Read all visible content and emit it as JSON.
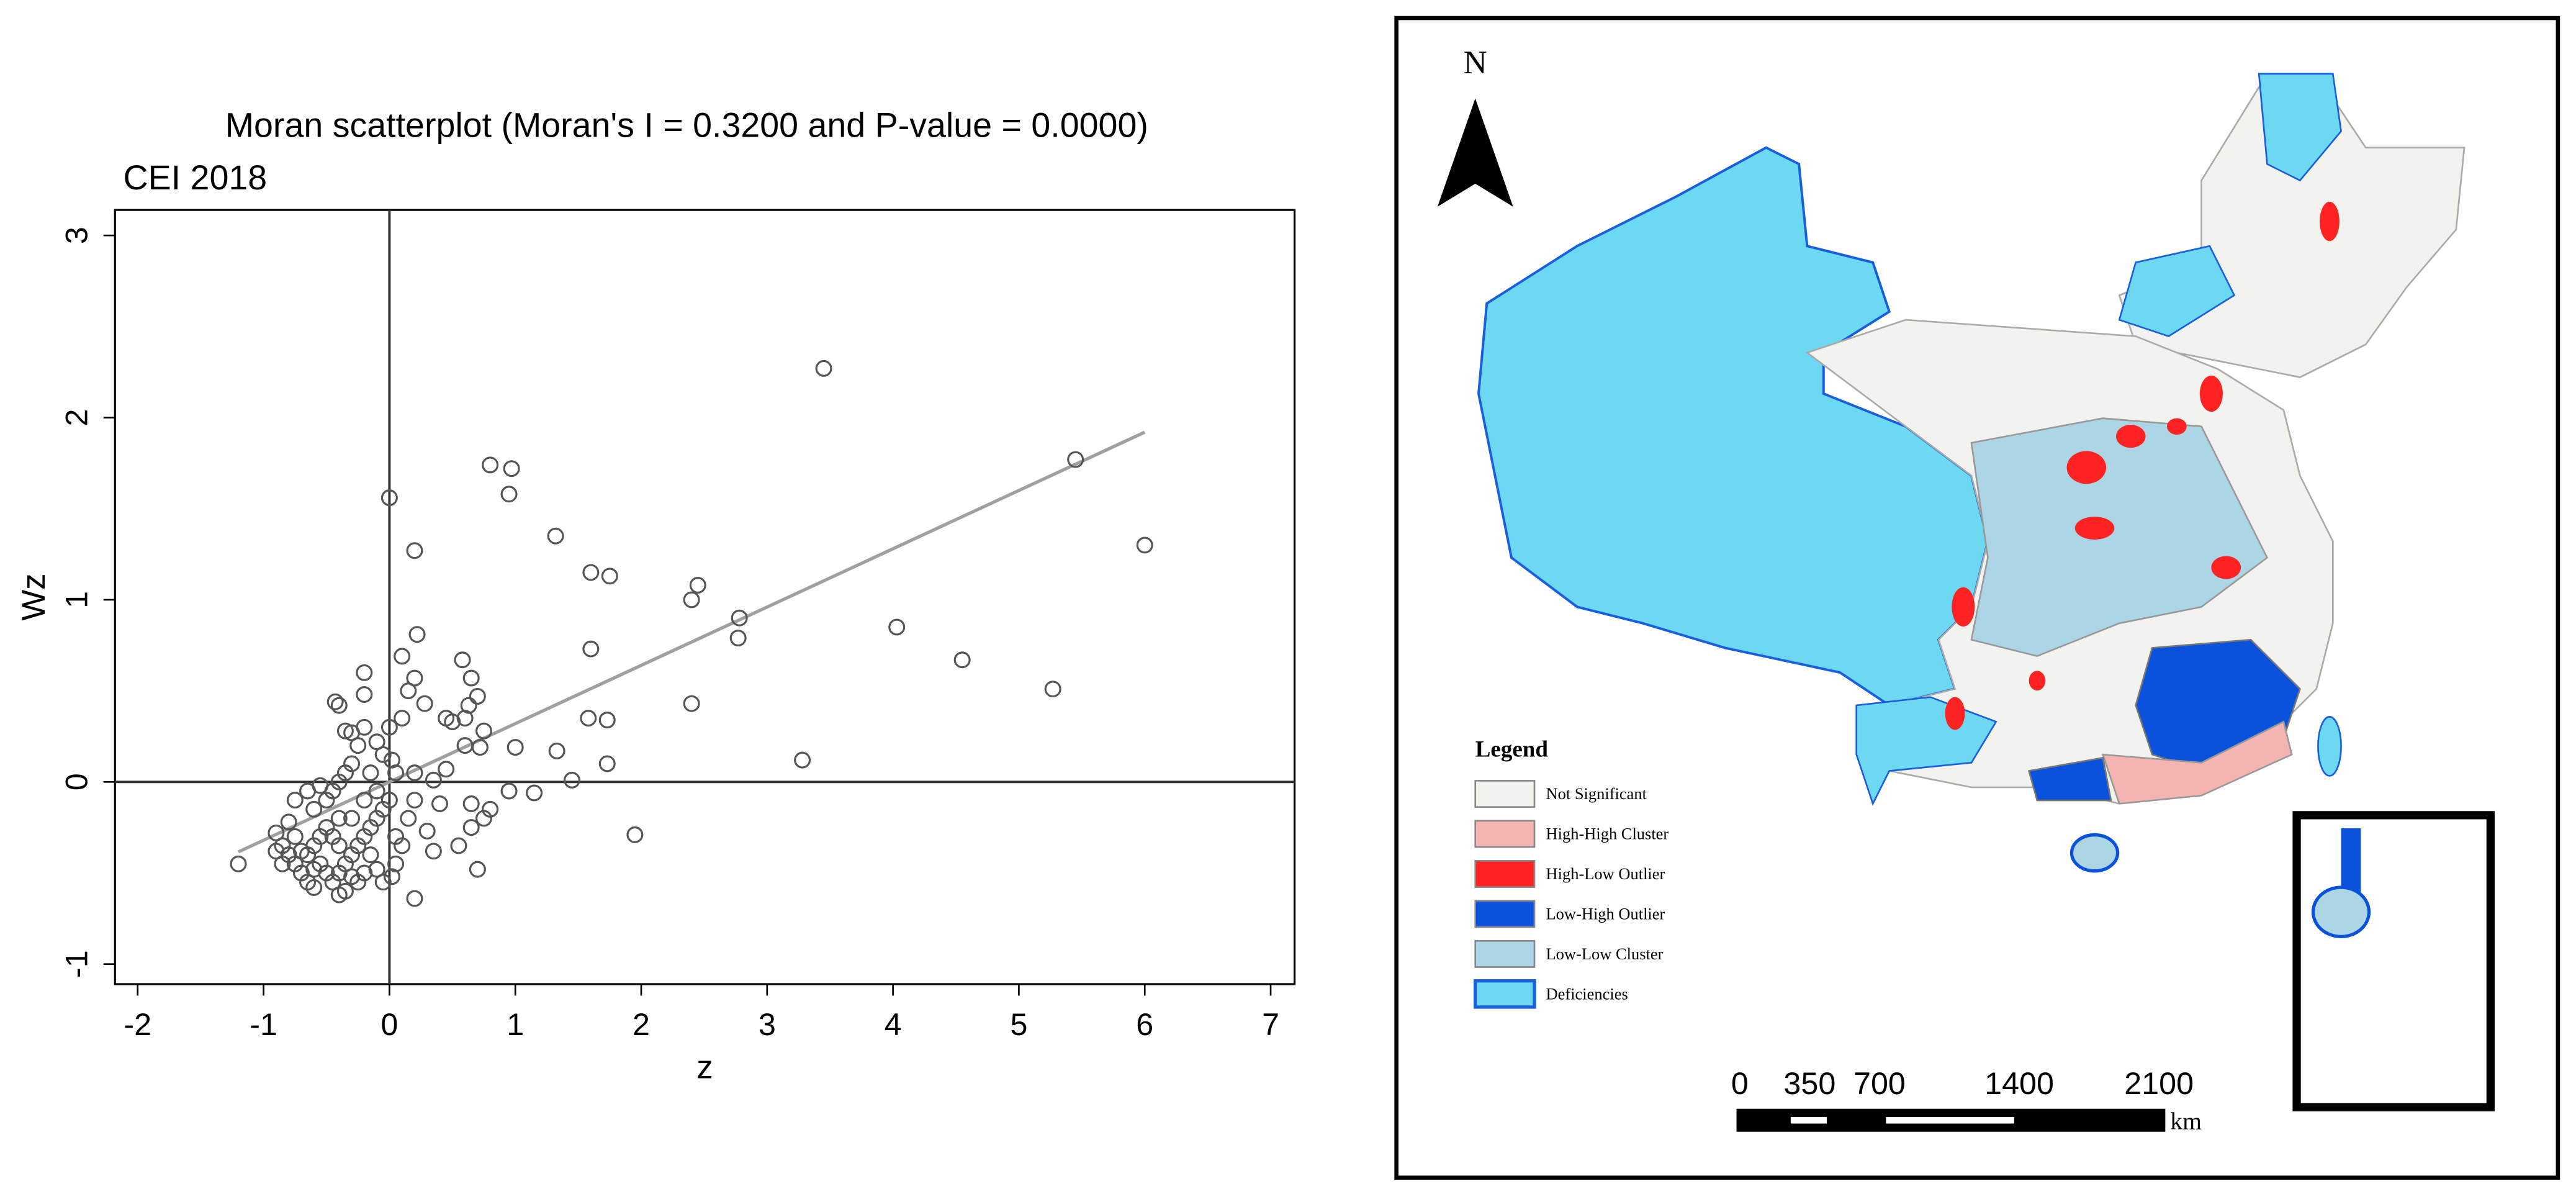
{
  "chart_data": {
    "type": "scatter",
    "title": "Moran scatterplot (Moran's I = 0.3200 and P-value = 0.0000)",
    "subtitle": "CEI 2018",
    "x_label": "z",
    "y_label": "Wz",
    "color": "#555555",
    "x": [
      3.45,
      5.45,
      6.0,
      0.8,
      0.97,
      0.95,
      0,
      0.2,
      1.32,
      1.6,
      1.75,
      2.4,
      2.45,
      2.78,
      2.77,
      4.03,
      4.55,
      5.27,
      1.6,
      2.4,
      3.28,
      1.95,
      1.73,
      1.58,
      1.33,
      1.45,
      1.73,
      1.0,
      1.15,
      0.95,
      0.8,
      0.7,
      0.2,
      -1.2,
      0.22,
      0.1,
      0.65,
      0.58,
      0.7,
      0.63,
      0.15,
      0.2,
      -0.2,
      -0.4,
      -0.43,
      -0.2,
      0.75,
      0.6,
      0.45,
      0.5,
      0.28,
      0.72,
      0.6,
      0.45,
      0.35,
      0.4,
      0.3,
      0.35,
      0.55,
      0.65,
      0.75,
      0.65,
      -0.9,
      -0.85,
      -0.8,
      -0.75,
      -0.7,
      -0.65,
      -0.6,
      -0.55,
      -0.5,
      -0.45,
      -0.4,
      -0.35,
      -0.3,
      -0.25,
      -0.2,
      -0.15,
      -0.1,
      -0.05,
      0,
      0.05,
      0.05,
      0.02,
      -0.05,
      -0.1,
      -0.15,
      -0.2,
      -0.25,
      -0.3,
      -0.35,
      -0.4,
      -0.45,
      -0.5,
      -0.55,
      -0.6,
      -0.65,
      -0.7,
      -0.75,
      -0.8,
      -0.6,
      -0.5,
      -0.45,
      -0.4,
      -0.35,
      -0.3,
      -0.25,
      -0.3,
      -0.2,
      -0.1,
      -0.05,
      0.02,
      0.05,
      -0.1,
      -0.2,
      -0.3,
      -0.4,
      -0.55,
      -0.65,
      -0.75,
      -0.85,
      -0.9,
      -0.6,
      -0.4,
      0.15,
      0.2,
      0.2,
      0.1,
      0.1,
      0,
      -0.35,
      -0.15
    ],
    "y": [
      2.27,
      1.77,
      1.3,
      1.74,
      1.72,
      1.58,
      1.56,
      1.27,
      1.35,
      1.15,
      1.13,
      1.0,
      1.08,
      0.9,
      0.79,
      0.85,
      0.67,
      0.51,
      0.73,
      0.43,
      0.12,
      -0.29,
      0.34,
      0.35,
      0.17,
      0.01,
      0.1,
      0.19,
      -0.06,
      -0.05,
      -0.15,
      -0.48,
      -0.64,
      -0.45,
      0.81,
      0.69,
      0.57,
      0.67,
      0.47,
      0.42,
      0.5,
      0.57,
      0.6,
      0.42,
      0.44,
      0.48,
      0.28,
      0.35,
      0.35,
      0.33,
      0.43,
      0.19,
      0.2,
      0.07,
      0.01,
      -0.12,
      -0.27,
      -0.38,
      -0.35,
      -0.25,
      -0.2,
      -0.12,
      -0.28,
      -0.35,
      -0.4,
      -0.45,
      -0.5,
      -0.55,
      -0.58,
      -0.45,
      -0.5,
      -0.55,
      -0.5,
      -0.45,
      -0.4,
      -0.35,
      -0.3,
      -0.25,
      -0.2,
      -0.15,
      -0.1,
      -0.3,
      -0.45,
      -0.52,
      -0.55,
      -0.48,
      -0.4,
      -0.5,
      -0.55,
      -0.52,
      -0.6,
      -0.35,
      -0.3,
      -0.25,
      -0.3,
      -0.35,
      -0.4,
      -0.38,
      -0.3,
      -0.22,
      -0.15,
      -0.1,
      -0.05,
      0.0,
      0.05,
      0.1,
      0.2,
      0.27,
      0.3,
      0.22,
      0.15,
      0.12,
      0.05,
      -0.05,
      -0.1,
      -0.2,
      -0.2,
      -0.02,
      -0.05,
      -0.1,
      -0.45,
      -0.38,
      -0.48,
      -0.62,
      -0.2,
      -0.1,
      0.05,
      -0.35,
      0.35,
      0.3,
      0.28,
      0.05
    ],
    "fit_line": {
      "x": [
        -1.2,
        6
      ],
      "y": [
        -0.384,
        1.92
      ],
      "color": "#a0a0a0"
    },
    "xlim": [
      -2.18,
      7.19
    ],
    "ylim": [
      -1.11,
      3.14
    ],
    "xticks": [
      -2,
      -1,
      0,
      1,
      2,
      3,
      4,
      5,
      6,
      7
    ],
    "yticks": [
      -1,
      0,
      1,
      2,
      3
    ]
  },
  "map": {
    "north_label": "N",
    "legend": {
      "title": "Legend",
      "items": [
        {
          "label": "Not Significant",
          "color": "#f2f2ee"
        },
        {
          "label": "High-High Cluster",
          "color": "#f4b4b2"
        },
        {
          "label": "High-Low Outlier",
          "color": "#ff2222"
        },
        {
          "label": "Low-High Outlier",
          "color": "#0a52dc"
        },
        {
          "label": "Low-Low Cluster",
          "color": "#acd6e6"
        },
        {
          "label": "Deficiencies",
          "color": "#6cd8f2"
        }
      ]
    },
    "scale": {
      "ticks": [
        0,
        350,
        700,
        1400,
        2100
      ],
      "unit": "km"
    }
  }
}
